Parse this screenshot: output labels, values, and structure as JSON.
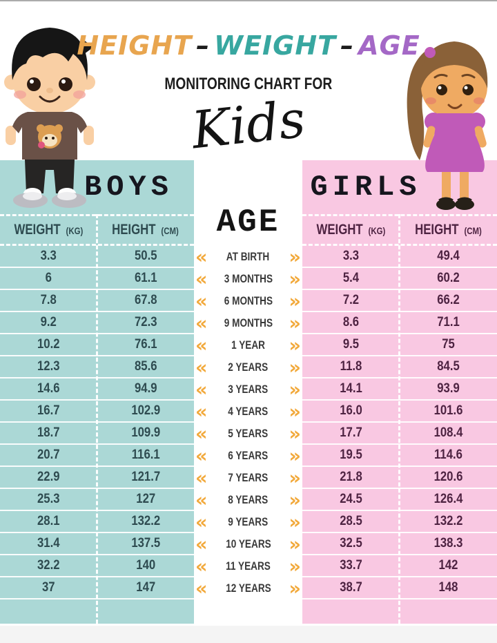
{
  "page": {
    "title_words": [
      {
        "text": "HEIGHT",
        "color": "#E8A54F"
      },
      {
        "text": "WEIGHT",
        "color": "#38A7A0"
      },
      {
        "text": "AGE",
        "color": "#A468C6"
      }
    ],
    "title_separator": "–",
    "subtitle": "MONITORING CHART FOR",
    "script_title": "Kids"
  },
  "boys_table": {
    "heading": "BOYS",
    "col1_name": "WEIGHT",
    "col1_unit": "(KG)",
    "col2_name": "HEIGHT",
    "col2_unit": "(CM)",
    "rows": [
      [
        "3.3",
        "50.5"
      ],
      [
        "6",
        "61.1"
      ],
      [
        "7.8",
        "67.8"
      ],
      [
        "9.2",
        "72.3"
      ],
      [
        "10.2",
        "76.1"
      ],
      [
        "12.3",
        "85.6"
      ],
      [
        "14.6",
        "94.9"
      ],
      [
        "16.7",
        "102.9"
      ],
      [
        "18.7",
        "109.9"
      ],
      [
        "20.7",
        "116.1"
      ],
      [
        "22.9",
        "121.7"
      ],
      [
        "25.3",
        "127"
      ],
      [
        "28.1",
        "132.2"
      ],
      [
        "31.4",
        "137.5"
      ],
      [
        "32.2",
        "140"
      ],
      [
        "37",
        "147"
      ]
    ]
  },
  "girls_table": {
    "heading": "GIRLS",
    "col1_name": "WEIGHT",
    "col1_unit": "(KG)",
    "col2_name": "HEIGHT",
    "col2_unit": "(CM)",
    "rows": [
      [
        "3.3",
        "49.4"
      ],
      [
        "5.4",
        "60.2"
      ],
      [
        "7.2",
        "66.2"
      ],
      [
        "8.6",
        "71.1"
      ],
      [
        "9.5",
        "75"
      ],
      [
        "11.8",
        "84.5"
      ],
      [
        "14.1",
        "93.9"
      ],
      [
        "16.0",
        "101.6"
      ],
      [
        "17.7",
        "108.4"
      ],
      [
        "19.5",
        "114.6"
      ],
      [
        "21.8",
        "120.6"
      ],
      [
        "24.5",
        "126.4"
      ],
      [
        "28.5",
        "132.2"
      ],
      [
        "32.5",
        "138.3"
      ],
      [
        "33.7",
        "142"
      ],
      [
        "38.7",
        "148"
      ]
    ]
  },
  "age_column": {
    "heading": "AGE",
    "chevron_left": "«",
    "chevron_right": "»",
    "ages": [
      "AT BIRTH",
      "3 MONTHS",
      "6 MONTHS",
      "9 MONTHS",
      "1 YEAR",
      "2 YEARS",
      "3 YEARS",
      "4 YEARS",
      "5 YEARS",
      "6 YEARS",
      "7 YEARS",
      "8 YEARS",
      "9 YEARS",
      "10 YEARS",
      "11 YEARS",
      "12 YEARS"
    ]
  },
  "colors": {
    "teal_bg": "#ABD8D6",
    "pink_bg": "#F9C8E2",
    "teal_text": "#2E4B50",
    "pink_text": "#4E2342",
    "chevron": "#F2A93B",
    "title_orange": "#E8A54F",
    "title_teal": "#38A7A0",
    "title_purple": "#A468C6"
  },
  "chart_data": {
    "type": "table",
    "title": "HEIGHT - WEIGHT - AGE MONITORING CHART FOR Kids",
    "categories": [
      "AT BIRTH",
      "3 MONTHS",
      "6 MONTHS",
      "9 MONTHS",
      "1 YEAR",
      "2 YEARS",
      "3 YEARS",
      "4 YEARS",
      "5 YEARS",
      "6 YEARS",
      "7 YEARS",
      "8 YEARS",
      "9 YEARS",
      "10 YEARS",
      "11 YEARS",
      "12 YEARS"
    ],
    "series": [
      {
        "name": "Boys Weight (kg)",
        "values": [
          3.3,
          6,
          7.8,
          9.2,
          10.2,
          12.3,
          14.6,
          16.7,
          18.7,
          20.7,
          22.9,
          25.3,
          28.1,
          31.4,
          32.2,
          37
        ]
      },
      {
        "name": "Boys Height (cm)",
        "values": [
          50.5,
          61.1,
          67.8,
          72.3,
          76.1,
          85.6,
          94.9,
          102.9,
          109.9,
          116.1,
          121.7,
          127,
          132.2,
          137.5,
          140,
          147
        ]
      },
      {
        "name": "Girls Weight (kg)",
        "values": [
          3.3,
          5.4,
          7.2,
          8.6,
          9.5,
          11.8,
          14.1,
          16.0,
          17.7,
          19.5,
          21.8,
          24.5,
          28.5,
          32.5,
          33.7,
          38.7
        ]
      },
      {
        "name": "Girls Height (cm)",
        "values": [
          49.4,
          60.2,
          66.2,
          71.1,
          75,
          84.5,
          93.9,
          101.6,
          108.4,
          114.6,
          120.6,
          126.4,
          132.2,
          138.3,
          142,
          148
        ]
      }
    ]
  }
}
